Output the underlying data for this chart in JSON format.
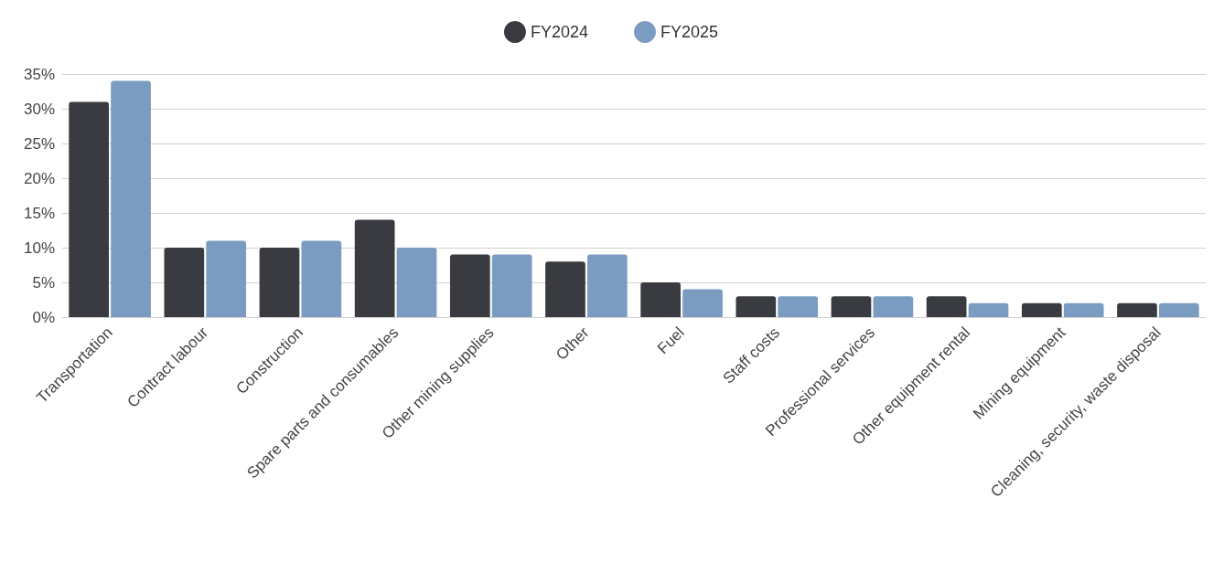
{
  "chart_data": {
    "type": "bar",
    "categories": [
      "Transportation",
      "Contract labour",
      "Construction",
      "Spare parts and consumables",
      "Other mining supplies",
      "Other",
      "Fuel",
      "Staff costs",
      "Professional services",
      "Other equipment rental",
      "Mining equipment",
      "Cleaning, security, waste disposal"
    ],
    "series": [
      {
        "name": "FY2024",
        "color": "#3a3b40",
        "values": [
          31,
          10,
          10,
          14,
          9,
          8,
          5,
          3,
          3,
          3,
          2,
          2
        ]
      },
      {
        "name": "FY2025",
        "color": "#7a9cc0",
        "values": [
          34,
          11,
          11,
          10,
          9,
          9,
          4,
          3,
          3,
          2,
          2,
          2
        ]
      }
    ],
    "ylim": [
      0,
      35
    ],
    "yticks": [
      {
        "value": 0,
        "label": "0%"
      },
      {
        "value": 5,
        "label": "5%"
      },
      {
        "value": 10,
        "label": "10%"
      },
      {
        "value": 15,
        "label": "15%"
      },
      {
        "value": 20,
        "label": "20%"
      },
      {
        "value": 25,
        "label": "25%"
      },
      {
        "value": 30,
        "label": "30%"
      },
      {
        "value": 35,
        "label": "35%"
      }
    ],
    "grid": "y",
    "legend": "top"
  }
}
